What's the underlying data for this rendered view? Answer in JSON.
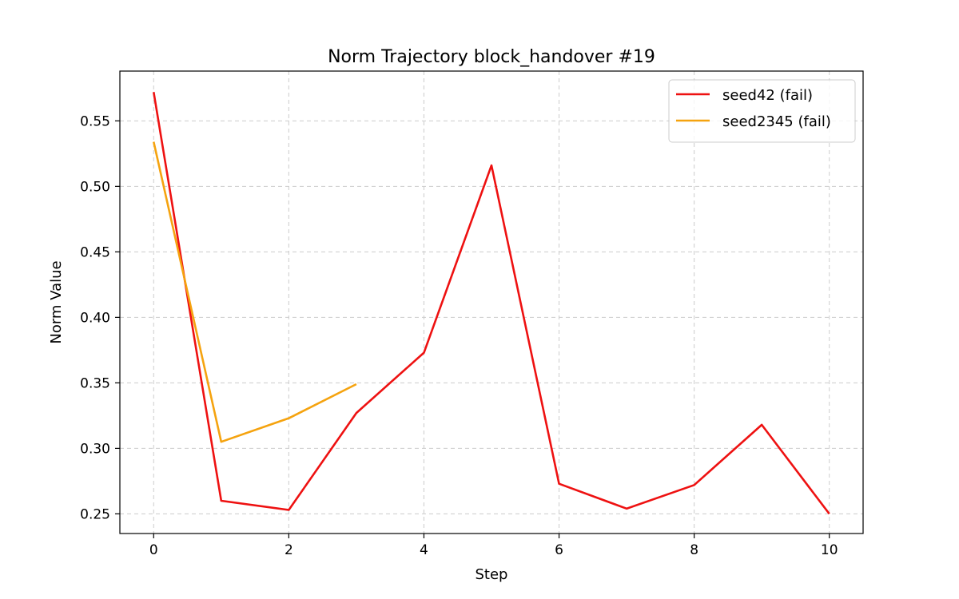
{
  "chart_data": {
    "type": "line",
    "title": "Norm Trajectory block_handover #19",
    "xlabel": "Step",
    "ylabel": "Norm Value",
    "xlim": [
      -0.5,
      10.5
    ],
    "ylim": [
      0.235,
      0.588
    ],
    "xticks": [
      0,
      2,
      4,
      6,
      8,
      10
    ],
    "xtick_labels": [
      "0",
      "2",
      "4",
      "6",
      "8",
      "10"
    ],
    "yticks": [
      0.25,
      0.3,
      0.35,
      0.4,
      0.45,
      0.5,
      0.55
    ],
    "ytick_labels": [
      "0.25",
      "0.30",
      "0.35",
      "0.40",
      "0.45",
      "0.50",
      "0.55"
    ],
    "grid": true,
    "legend_position": "top-right",
    "series": [
      {
        "name": "seed42 (fail)",
        "color": "#ee1111",
        "x": [
          0,
          1,
          2,
          3,
          4,
          5,
          6,
          7,
          8,
          9,
          10
        ],
        "y": [
          0.572,
          0.26,
          0.253,
          0.327,
          0.373,
          0.516,
          0.273,
          0.254,
          0.272,
          0.318,
          0.25
        ]
      },
      {
        "name": "seed2345 (fail)",
        "color": "#f5a30f",
        "x": [
          0,
          1,
          2,
          3
        ],
        "y": [
          0.534,
          0.305,
          0.323,
          0.349
        ]
      }
    ]
  }
}
